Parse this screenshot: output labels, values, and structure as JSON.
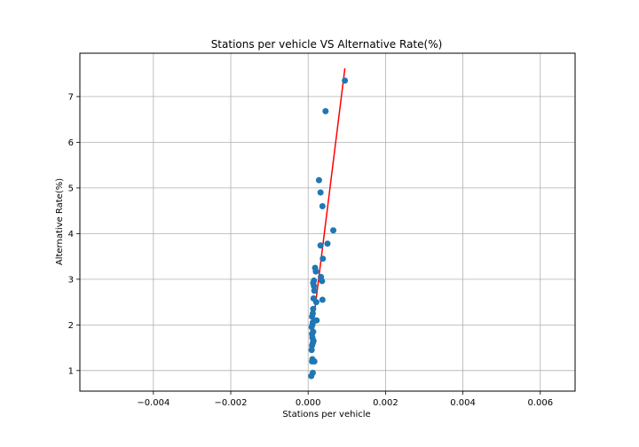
{
  "chart_data": {
    "type": "scatter",
    "title": "Stations per vehicle VS Alternative Rate(%)",
    "xlabel": "Stations per vehicle",
    "ylabel": "Alternative Rate(%)",
    "xlim": [
      -0.0059,
      0.0069
    ],
    "ylim": [
      0.55,
      7.95
    ],
    "xticks": [
      -0.004,
      -0.002,
      0.0,
      0.002,
      0.004,
      0.006
    ],
    "xtick_labels": [
      "−0.004",
      "−0.002",
      "0.000",
      "0.002",
      "0.004",
      "0.006"
    ],
    "yticks": [
      1,
      2,
      3,
      4,
      5,
      6,
      7
    ],
    "ytick_labels": [
      "1",
      "2",
      "3",
      "4",
      "5",
      "6",
      "7"
    ],
    "grid": true,
    "points": {
      "color": "#1f77b4",
      "x": [
        0.00095,
        0.00045,
        0.00028,
        0.00032,
        0.00037,
        0.00065,
        0.0005,
        0.00032,
        0.00038,
        0.00018,
        0.0002,
        0.00033,
        0.00015,
        0.00036,
        0.00013,
        0.00015,
        0.00016,
        0.00037,
        0.00014,
        0.00021,
        0.00013,
        0.00012,
        0.0001,
        0.00022,
        0.00012,
        0.00011,
        9e-05,
        0.00013,
        0.0001,
        0.00011,
        0.00014,
        0.0001,
        9e-05,
        0.00016,
        0.0001,
        0.00011,
        8e-05,
        0.00012,
        0.00012
      ],
      "y": [
        7.35,
        6.68,
        5.17,
        4.9,
        4.6,
        4.07,
        3.78,
        3.74,
        3.45,
        3.25,
        3.17,
        3.05,
        2.97,
        2.96,
        2.92,
        2.85,
        2.75,
        2.55,
        2.58,
        2.5,
        2.35,
        2.25,
        2.18,
        2.1,
        2.05,
        2.0,
        1.95,
        1.85,
        1.8,
        1.72,
        1.65,
        1.55,
        1.45,
        1.2,
        1.2,
        1.25,
        0.88,
        0.95,
        1.6
      ]
    },
    "fit_line": {
      "color": "#ff0000",
      "x": [
        5e-05,
        0.00095
      ],
      "y": [
        1.5,
        7.62
      ]
    }
  }
}
